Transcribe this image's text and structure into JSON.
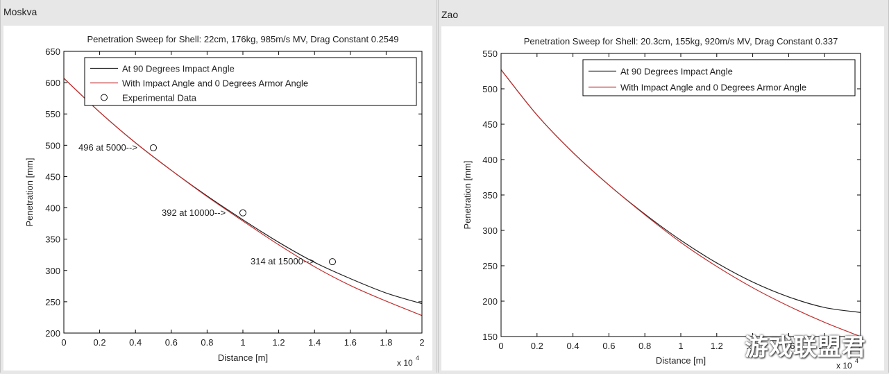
{
  "panels": [
    {
      "name": "Moskva"
    },
    {
      "name": "Zao"
    }
  ],
  "watermark": "游戏联盟君",
  "colors": {
    "series_90": "#222222",
    "series_armor": "#c03030",
    "frame": "#000000"
  },
  "chart_data": [
    {
      "type": "line",
      "title": "Penetration Sweep for Shell: 22cm, 176kg, 985m/s MV, Drag Constant 0.2549",
      "xlabel": "Distance [m]",
      "ylabel": "Penetration [mm]",
      "xlim": [
        0,
        20000
      ],
      "ylim": [
        200,
        650
      ],
      "x_multiplier_label": "x 10",
      "x_multiplier_exp": "4",
      "xticks": [
        0,
        2000,
        4000,
        6000,
        8000,
        10000,
        12000,
        14000,
        16000,
        18000,
        20000
      ],
      "xtick_labels": [
        "0",
        "0.2",
        "0.4",
        "0.6",
        "0.8",
        "1",
        "1.2",
        "1.4",
        "1.6",
        "1.8",
        "2"
      ],
      "yticks": [
        200,
        250,
        300,
        350,
        400,
        450,
        500,
        550,
        600,
        650
      ],
      "ytick_labels": [
        "200",
        "250",
        "300",
        "350",
        "400",
        "450",
        "500",
        "550",
        "600",
        "650"
      ],
      "legend": [
        "At 90 Degrees Impact Angle",
        "With Impact Angle and 0 Degrees Armor Angle",
        "Experimental Data"
      ],
      "series": [
        {
          "name": "At 90 Degrees Impact Angle",
          "x": [
            0,
            2000,
            4000,
            6000,
            8000,
            10000,
            12000,
            14000,
            16000,
            18000,
            20000
          ],
          "values": [
            607,
            553,
            504,
            460,
            419,
            381,
            345,
            313,
            287,
            264,
            247
          ]
        },
        {
          "name": "With Impact Angle and 0 Degrees Armor Angle",
          "x": [
            0,
            2000,
            4000,
            6000,
            8000,
            10000,
            12000,
            14000,
            16000,
            18000,
            20000
          ],
          "values": [
            607,
            553,
            504,
            460,
            418,
            379,
            341,
            306,
            276,
            251,
            228
          ]
        }
      ],
      "points": [
        {
          "x": 5000,
          "y": 496,
          "label": "496 at 5000-->"
        },
        {
          "x": 10000,
          "y": 392,
          "label": "392 at 10000-->"
        },
        {
          "x": 15000,
          "y": 314,
          "label": "314 at 15000-->"
        }
      ]
    },
    {
      "type": "line",
      "title": "Penetration Sweep for Shell: 20.3cm, 155kg, 920m/s MV, Drag Constant 0.337",
      "xlabel": "Distance [m]",
      "ylabel": "Penetration [mm]",
      "xlim": [
        0,
        20000
      ],
      "ylim": [
        150,
        550
      ],
      "x_multiplier_label": "x 10",
      "x_multiplier_exp": "4",
      "xticks": [
        0,
        2000,
        4000,
        6000,
        8000,
        10000,
        12000,
        14000,
        16000,
        18000,
        20000
      ],
      "xtick_labels": [
        "0",
        "0.2",
        "0.4",
        "0.6",
        "0.8",
        "1",
        "1.2",
        "1.4",
        "1.6",
        "1.8",
        "2"
      ],
      "yticks": [
        150,
        200,
        250,
        300,
        350,
        400,
        450,
        500,
        550
      ],
      "ytick_labels": [
        "150",
        "200",
        "250",
        "300",
        "350",
        "400",
        "450",
        "500",
        "550"
      ],
      "legend": [
        "At 90 Degrees Impact Angle",
        "With Impact Angle and 0 Degrees Armor Angle"
      ],
      "series": [
        {
          "name": "At 90 Degrees Impact Angle",
          "x": [
            0,
            2000,
            4000,
            6000,
            8000,
            10000,
            12000,
            14000,
            16000,
            18000,
            20000
          ],
          "values": [
            527,
            463,
            410,
            364,
            323,
            286,
            254,
            227,
            206,
            191,
            184
          ]
        },
        {
          "name": "With Impact Angle and 0 Degrees Armor Angle",
          "x": [
            0,
            2000,
            4000,
            6000,
            8000,
            10000,
            12000,
            14000,
            16000,
            18000,
            20000
          ],
          "values": [
            527,
            463,
            410,
            364,
            322,
            283,
            249,
            219,
            193,
            170,
            150
          ]
        }
      ],
      "points": []
    }
  ]
}
